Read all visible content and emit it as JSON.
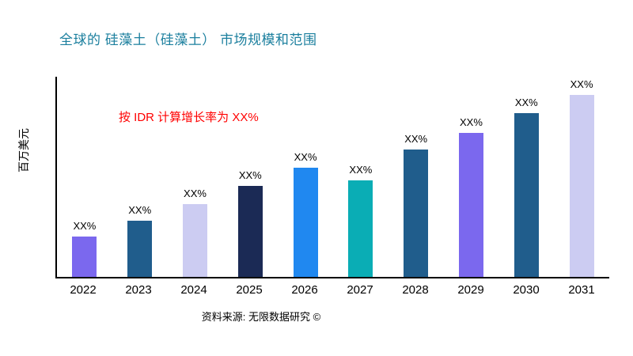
{
  "header": {
    "title": "全球的 硅藻土（硅藻土） 市场规模和范围",
    "title_color": "#1b7f9e"
  },
  "annotation": {
    "text": "按 IDR 计算增长率为 XX%",
    "color": "#ff0000"
  },
  "footer": {
    "source": "资料来源: 无限数据研究 ©"
  },
  "chart_data": {
    "type": "bar",
    "title": "全球的 硅藻土（硅藻土） 市场规模和范围",
    "ylabel": "百万美元",
    "xlabel": "",
    "categories": [
      "2022",
      "2023",
      "2024",
      "2025",
      "2026",
      "2027",
      "2028",
      "2029",
      "2030",
      "2031"
    ],
    "values": [
      22,
      31,
      40,
      50,
      60,
      53,
      70,
      79,
      90,
      100
    ],
    "bar_labels": [
      "XX%",
      "XX%",
      "XX%",
      "XX%",
      "XX%",
      "XX%",
      "XX%",
      "XX%",
      "XX%",
      "XX%"
    ],
    "colors": [
      "#7b68ee",
      "#205d8c",
      "#ccccf2",
      "#1b2a55",
      "#2088f0",
      "#0aadb5",
      "#205d8c",
      "#7b68ee",
      "#205d8c",
      "#ccccf2"
    ],
    "ylim": [
      0,
      110
    ],
    "grid": false,
    "legend_position": "none"
  }
}
